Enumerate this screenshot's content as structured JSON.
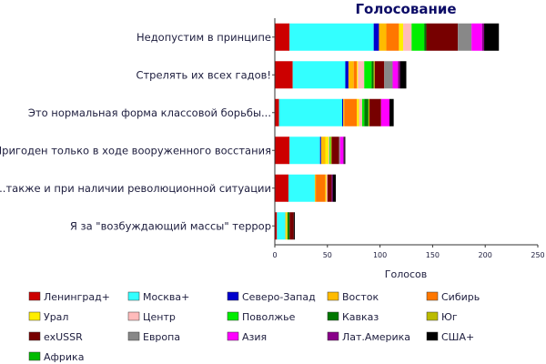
{
  "chart_data": {
    "type": "bar",
    "orientation": "horizontal",
    "stacked": true,
    "title": "Голосование",
    "xlabel": "Голосов",
    "ylabel": "",
    "xlim": [
      0,
      250
    ],
    "xticks": [
      0,
      50,
      100,
      150,
      200,
      250
    ],
    "grid": false,
    "legend": "bottom",
    "categories": [
      "Недопустим в принципе",
      "Стрелять их всех гадов!",
      "Это нормальная форма классовой борьбы...",
      "Пригоден только в ходе вооруженного восстания",
      "...также и при наличии революционной ситуации",
      "Я за \"возбуждающий массы\" террор"
    ],
    "series": [
      {
        "name": "Ленинград+",
        "color": "#cc0000",
        "values": [
          14,
          17,
          4,
          14,
          13,
          2
        ]
      },
      {
        "name": "Москва+",
        "color": "#33ffff",
        "values": [
          80,
          50,
          60,
          29,
          25,
          8
        ]
      },
      {
        "name": "Северо-Запад",
        "color": "#0000cc",
        "values": [
          5,
          3,
          1,
          1,
          0,
          0
        ]
      },
      {
        "name": "Восток",
        "color": "#ffbb00",
        "values": [
          7,
          5,
          1,
          4,
          1,
          1
        ]
      },
      {
        "name": "Сибирь",
        "color": "#ff7700",
        "values": [
          12,
          3,
          12,
          0,
          9,
          0
        ]
      },
      {
        "name": "Урал",
        "color": "#ffee00",
        "values": [
          4,
          1,
          2,
          3,
          1,
          1
        ]
      },
      {
        "name": "Центр",
        "color": "#ffbbbb",
        "values": [
          8,
          6,
          3,
          1,
          1,
          0
        ]
      },
      {
        "name": "Поволжье",
        "color": "#00ee00",
        "values": [
          12,
          7,
          2,
          1,
          0,
          0
        ]
      },
      {
        "name": "Кавказ",
        "color": "#007700",
        "values": [
          2,
          2,
          4,
          0,
          0,
          2
        ]
      },
      {
        "name": "Юг",
        "color": "#bbbb00",
        "values": [
          0,
          1,
          1,
          1,
          0,
          0
        ]
      },
      {
        "name": "exUSSR",
        "color": "#770000",
        "values": [
          30,
          9,
          11,
          7,
          4,
          4
        ]
      },
      {
        "name": "Европа",
        "color": "#888888",
        "values": [
          13,
          8,
          0,
          1,
          0,
          0
        ]
      },
      {
        "name": "Азия",
        "color": "#ff00ff",
        "values": [
          10,
          5,
          8,
          3,
          0,
          0
        ]
      },
      {
        "name": "Лат.Америка",
        "color": "#880088",
        "values": [
          2,
          2,
          0,
          1,
          1,
          0
        ]
      },
      {
        "name": "США+",
        "color": "#000000",
        "values": [
          14,
          6,
          4,
          1,
          3,
          1
        ]
      },
      {
        "name": "Африка",
        "color": "#00bb00",
        "values": [
          0,
          0,
          0,
          0,
          0,
          0
        ]
      }
    ]
  }
}
